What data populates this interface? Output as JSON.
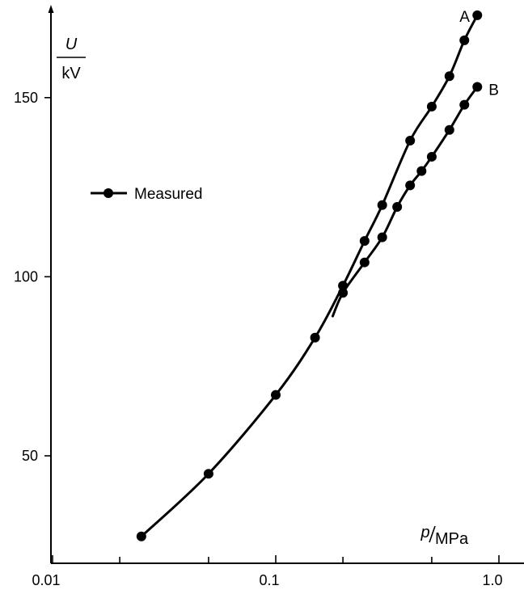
{
  "chart_data": {
    "type": "line",
    "xscale": "log",
    "xlim": [
      0.01,
      1.0
    ],
    "ylim": [
      20,
      175
    ],
    "x_ticks": [
      {
        "value": 0.01,
        "label": "0.01"
      },
      {
        "value": 0.1,
        "label": "0.1"
      },
      {
        "value": 1.0,
        "label": "1.0"
      }
    ],
    "x_minor_ticks": [
      0.02,
      0.05,
      0.2,
      0.5
    ],
    "y_ticks": [
      {
        "value": 50,
        "label": "50"
      },
      {
        "value": 100,
        "label": "100"
      },
      {
        "value": 150,
        "label": "150"
      }
    ],
    "xlabel": {
      "symbol": "p",
      "unit": "MPa"
    },
    "ylabel": {
      "symbol": "U",
      "unit": "kV"
    },
    "legend": {
      "label": "Measured",
      "placement": "left-middle"
    },
    "grid": false,
    "series": [
      {
        "name": "A",
        "points": [
          {
            "x": 0.025,
            "y": 27.5
          },
          {
            "x": 0.05,
            "y": 45
          },
          {
            "x": 0.1,
            "y": 67
          },
          {
            "x": 0.15,
            "y": 83
          },
          {
            "x": 0.2,
            "y": 97.5
          },
          {
            "x": 0.25,
            "y": 110
          },
          {
            "x": 0.3,
            "y": 120
          },
          {
            "x": 0.4,
            "y": 138
          },
          {
            "x": 0.5,
            "y": 147.5
          },
          {
            "x": 0.6,
            "y": 156
          },
          {
            "x": 0.7,
            "y": 166
          },
          {
            "x": 0.8,
            "y": 173
          }
        ]
      },
      {
        "name": "B",
        "points": [
          {
            "x": 0.18,
            "y": 89
          },
          {
            "x": 0.2,
            "y": 95.5
          },
          {
            "x": 0.25,
            "y": 104
          },
          {
            "x": 0.3,
            "y": 111
          },
          {
            "x": 0.35,
            "y": 119.5
          },
          {
            "x": 0.4,
            "y": 125.5
          },
          {
            "x": 0.45,
            "y": 129.5
          },
          {
            "x": 0.5,
            "y": 133.5
          },
          {
            "x": 0.6,
            "y": 141
          },
          {
            "x": 0.7,
            "y": 148
          },
          {
            "x": 0.8,
            "y": 153
          }
        ]
      }
    ]
  }
}
